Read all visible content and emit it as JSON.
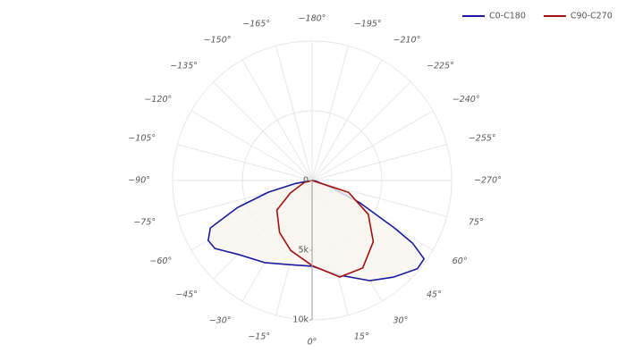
{
  "chart_data": {
    "type": "polar",
    "theta_zero": "bottom",
    "rlim": [
      0,
      10000
    ],
    "rticks": [
      0,
      {
        "value": 5000,
        "label": "5k"
      },
      {
        "value": 10000,
        "label": "10k"
      }
    ],
    "thetaticks": [
      {
        "value": 0,
        "label": "0°"
      },
      {
        "value": 15,
        "label": "15°"
      },
      {
        "value": 30,
        "label": "30°"
      },
      {
        "value": 45,
        "label": "45°"
      },
      {
        "value": 60,
        "label": "60°"
      },
      {
        "value": 75,
        "label": "75°"
      },
      {
        "value": -270,
        "label": "−270°"
      },
      {
        "value": -255,
        "label": "−255°"
      },
      {
        "value": -240,
        "label": "−240°"
      },
      {
        "value": -225,
        "label": "−225°"
      },
      {
        "value": -210,
        "label": "−210°"
      },
      {
        "value": -195,
        "label": "−195°"
      },
      {
        "value": -180,
        "label": "−180°"
      },
      {
        "value": -165,
        "label": "−165°"
      },
      {
        "value": -150,
        "label": "−150°"
      },
      {
        "value": -135,
        "label": "−135°"
      },
      {
        "value": -120,
        "label": "−120°"
      },
      {
        "value": -105,
        "label": "−105°"
      },
      {
        "value": -90,
        "label": "−90°"
      },
      {
        "value": -75,
        "label": "−75°"
      },
      {
        "value": -60,
        "label": "−60°"
      },
      {
        "value": -45,
        "label": "−45°"
      },
      {
        "value": -30,
        "label": "−30°"
      },
      {
        "value": -15,
        "label": "−15°"
      }
    ],
    "grid": true,
    "legend": "top-right",
    "series": [
      {
        "name": "C0-C180",
        "color": "#1a1a9c",
        "fill": "#f7f5ee",
        "theta": [
          -90,
          -80,
          -75,
          -70,
          -65,
          -60,
          -55,
          -45,
          -30,
          -15,
          0,
          15,
          30,
          40,
          50,
          55,
          58,
          60,
          65,
          70,
          80,
          90
        ],
        "values": [
          0,
          1200,
          3250,
          5700,
          8050,
          8600,
          8500,
          7500,
          6800,
          6250,
          6150,
          7000,
          8300,
          9050,
          9850,
          9800,
          8500,
          6800,
          3800,
          1300,
          300,
          0
        ]
      },
      {
        "name": "C90-C270",
        "color": "#a01010",
        "fill": "#f7f5ee",
        "theta": [
          -90,
          -75,
          -60,
          -50,
          -32,
          -17,
          0,
          16,
          30,
          45,
          59,
          72,
          90
        ],
        "values": [
          0,
          600,
          1800,
          3300,
          4400,
          5250,
          6100,
          7200,
          7250,
          6200,
          4700,
          2750,
          0
        ]
      }
    ]
  }
}
